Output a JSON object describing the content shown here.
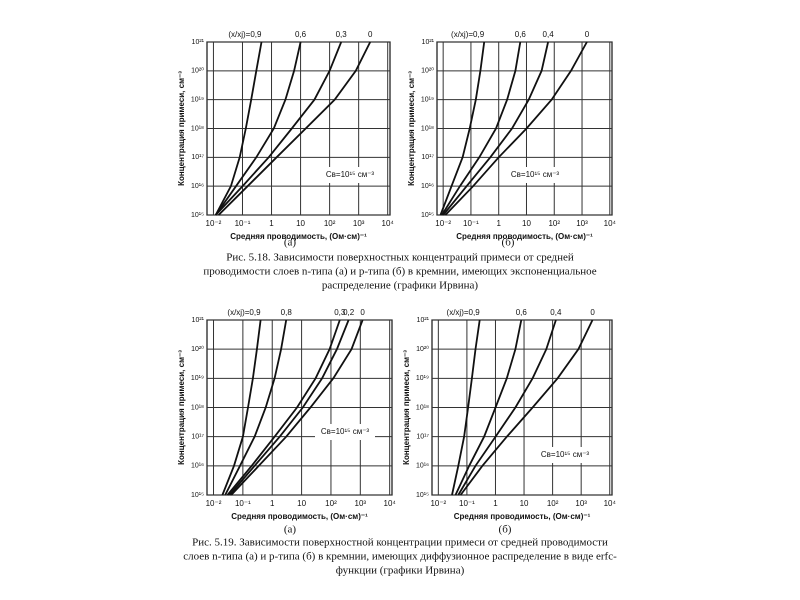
{
  "chart_data": [
    {
      "type": "line",
      "log_scale": true,
      "grid": true,
      "color": "#111111",
      "label": "(а)",
      "x_label": "Средняя проводимость, (Ом·см)⁻¹",
      "y_label": "Концентрация примеси, см⁻³",
      "annotation": "Cв=10¹⁵ см⁻³",
      "xlim": [
        0.006,
        12000
      ],
      "ylim": [
        1000000000000000.0,
        1e+21
      ],
      "xticks": [
        {
          "value": 0.01,
          "label": "10⁻²"
        },
        {
          "value": 0.1,
          "label": "10⁻¹"
        },
        1,
        10,
        {
          "value": 100,
          "label": "10²"
        },
        {
          "value": 1000,
          "label": "10³"
        },
        {
          "value": 10000,
          "label": "10⁴"
        }
      ],
      "yticks": [
        {
          "value": 1000000000000000.0,
          "label": "10¹⁵"
        },
        {
          "value": 1e+16,
          "label": "10¹⁶"
        },
        {
          "value": 1e+17,
          "label": "10¹⁷"
        },
        {
          "value": 1e+18,
          "label": "10¹⁸"
        },
        {
          "value": 1e+19,
          "label": "10¹⁹"
        },
        {
          "value": 1e+20,
          "label": "10²⁰"
        },
        {
          "value": 1e+21,
          "label": "10²¹"
        }
      ],
      "series": [
        {
          "name": "(x/xj)=0,9",
          "x": [
            0.012,
            0.04,
            0.08,
            0.13,
            0.2,
            0.3,
            0.45
          ],
          "values": [
            1000000000000000.0,
            1e+16,
            1e+17,
            1e+18,
            1e+19,
            1e+20,
            1e+21
          ]
        },
        {
          "name": "0,6",
          "x": [
            0.012,
            0.06,
            0.3,
            1.2,
            3,
            6,
            10
          ],
          "values": [
            1000000000000000.0,
            1e+16,
            1e+17,
            1e+18,
            1e+19,
            1e+20,
            1e+21
          ]
        },
        {
          "name": "0,3",
          "x": [
            0.012,
            0.1,
            0.8,
            5,
            30,
            100,
            250
          ],
          "values": [
            1000000000000000.0,
            1e+16,
            1e+17,
            1e+18,
            1e+19,
            1e+20,
            1e+21
          ]
        },
        {
          "name": "0",
          "x": [
            0.015,
            0.15,
            1.5,
            15,
            150,
            800,
            2500
          ],
          "values": [
            1000000000000000.0,
            1e+16,
            1e+17,
            1e+18,
            1e+19,
            1e+20,
            1e+21
          ]
        }
      ]
    },
    {
      "type": "line",
      "log_scale": true,
      "grid": true,
      "color": "#111111",
      "label": "(б)",
      "x_label": "Средняя проводимость, (Ом·см)⁻¹",
      "y_label": "Концентрация примеси, см⁻³",
      "annotation": "Cв=10¹⁵ см⁻³",
      "xlim": [
        0.006,
        12000
      ],
      "ylim": [
        1000000000000000.0,
        1e+21
      ],
      "xticks": [
        {
          "value": 0.01,
          "label": "10⁻²"
        },
        {
          "value": 0.1,
          "label": "10⁻¹"
        },
        1,
        10,
        {
          "value": 100,
          "label": "10²"
        },
        {
          "value": 1000,
          "label": "10³"
        },
        {
          "value": 10000,
          "label": "10⁴"
        }
      ],
      "yticks": [
        {
          "value": 1000000000000000.0,
          "label": "10¹⁵"
        },
        {
          "value": 1e+16,
          "label": "10¹⁶"
        },
        {
          "value": 1e+17,
          "label": "10¹⁷"
        },
        {
          "value": 1e+18,
          "label": "10¹⁸"
        },
        {
          "value": 1e+19,
          "label": "10¹⁹"
        },
        {
          "value": 1e+20,
          "label": "10²⁰"
        },
        {
          "value": 1e+21,
          "label": "10²¹"
        }
      ],
      "series": [
        {
          "name": "(x/xj)=0,9",
          "x": [
            0.008,
            0.02,
            0.05,
            0.09,
            0.15,
            0.22,
            0.3
          ],
          "values": [
            1000000000000000.0,
            1e+16,
            1e+17,
            1e+18,
            1e+19,
            1e+20,
            1e+21
          ]
        },
        {
          "name": "0,6",
          "x": [
            0.009,
            0.04,
            0.2,
            0.8,
            2,
            4,
            6
          ],
          "values": [
            1000000000000000.0,
            1e+16,
            1e+17,
            1e+18,
            1e+19,
            1e+20,
            1e+21
          ]
        },
        {
          "name": "0,4",
          "x": [
            0.01,
            0.07,
            0.5,
            3,
            12,
            35,
            60
          ],
          "values": [
            1000000000000000.0,
            1e+16,
            1e+17,
            1e+18,
            1e+19,
            1e+20,
            1e+21
          ]
        },
        {
          "name": "0",
          "x": [
            0.012,
            0.12,
            1,
            10,
            80,
            400,
            1500
          ],
          "values": [
            1000000000000000.0,
            1e+16,
            1e+17,
            1e+18,
            1e+19,
            1e+20,
            1e+21
          ]
        }
      ]
    },
    {
      "type": "line",
      "log_scale": true,
      "grid": true,
      "color": "#111111",
      "label": "(а)",
      "x_label": "Средняя проводимость, (Ом·см)⁻¹",
      "y_label": "Концентрация примеси, см⁻³",
      "annotation": "Cв=10¹⁵ см⁻³",
      "xlim": [
        0.006,
        12000
      ],
      "ylim": [
        1000000000000000.0,
        1e+21
      ],
      "xticks": [
        {
          "value": 0.01,
          "label": "10⁻²"
        },
        {
          "value": 0.1,
          "label": "10⁻¹"
        },
        1,
        10,
        {
          "value": 100,
          "label": "10²"
        },
        {
          "value": 1000,
          "label": "10³"
        },
        {
          "value": 10000,
          "label": "10⁴"
        }
      ],
      "yticks": [
        {
          "value": 1000000000000000.0,
          "label": "10¹⁵"
        },
        {
          "value": 1e+16,
          "label": "10¹⁶"
        },
        {
          "value": 1e+17,
          "label": "10¹⁷"
        },
        {
          "value": 1e+18,
          "label": "10¹⁸"
        },
        {
          "value": 1e+19,
          "label": "10¹⁹"
        },
        {
          "value": 1e+20,
          "label": "10²⁰"
        },
        {
          "value": 1e+21,
          "label": "10²¹"
        }
      ],
      "series": [
        {
          "name": "(x/xj)=0,9",
          "x": [
            0.02,
            0.05,
            0.1,
            0.15,
            0.22,
            0.3,
            0.4
          ],
          "values": [
            1000000000000000.0,
            1e+16,
            1e+17,
            1e+18,
            1e+19,
            1e+20,
            1e+21
          ]
        },
        {
          "name": "0,8",
          "x": [
            0.025,
            0.08,
            0.25,
            0.6,
            1.2,
            2,
            3
          ],
          "values": [
            1000000000000000.0,
            1e+16,
            1e+17,
            1e+18,
            1e+19,
            1e+20,
            1e+21
          ]
        },
        {
          "name": "0,3",
          "x": [
            0.03,
            0.2,
            1.2,
            7,
            30,
            90,
            200
          ],
          "values": [
            1000000000000000.0,
            1e+16,
            1e+17,
            1e+18,
            1e+19,
            1e+20,
            1e+21
          ]
        },
        {
          "name": "0,2",
          "x": [
            0.035,
            0.25,
            1.8,
            11,
            50,
            160,
            400
          ],
          "values": [
            1000000000000000.0,
            1e+16,
            1e+17,
            1e+18,
            1e+19,
            1e+20,
            1e+21
          ]
        },
        {
          "name": "0",
          "x": [
            0.04,
            0.35,
            3,
            20,
            120,
            500,
            1200
          ],
          "values": [
            1000000000000000.0,
            1e+16,
            1e+17,
            1e+18,
            1e+19,
            1e+20,
            1e+21
          ]
        }
      ]
    },
    {
      "type": "line",
      "log_scale": true,
      "grid": true,
      "color": "#111111",
      "label": "(б)",
      "x_label": "Средняя проводимость, (Ом·см)⁻¹",
      "y_label": "Концентрация примеси, см⁻³",
      "annotation": "Cв=10¹⁵ см⁻³",
      "xlim": [
        0.006,
        12000
      ],
      "ylim": [
        1000000000000000.0,
        1e+21
      ],
      "xticks": [
        {
          "value": 0.01,
          "label": "10⁻²"
        },
        {
          "value": 0.1,
          "label": "10⁻¹"
        },
        1,
        10,
        {
          "value": 100,
          "label": "10²"
        },
        {
          "value": 1000,
          "label": "10³"
        },
        {
          "value": 10000,
          "label": "10⁴"
        }
      ],
      "yticks": [
        {
          "value": 1000000000000000.0,
          "label": "10¹⁵"
        },
        {
          "value": 1e+16,
          "label": "10¹⁶"
        },
        {
          "value": 1e+17,
          "label": "10¹⁷"
        },
        {
          "value": 1e+18,
          "label": "10¹⁸"
        },
        {
          "value": 1e+19,
          "label": "10¹⁹"
        },
        {
          "value": 1e+20,
          "label": "10²⁰"
        },
        {
          "value": 1e+21,
          "label": "10²¹"
        }
      ],
      "series": [
        {
          "name": "(x/xj)=0,9",
          "x": [
            0.03,
            0.05,
            0.08,
            0.11,
            0.15,
            0.2,
            0.28
          ],
          "values": [
            1000000000000000.0,
            1e+16,
            1e+17,
            1e+18,
            1e+19,
            1e+20,
            1e+21
          ]
        },
        {
          "name": "0,6",
          "x": [
            0.04,
            0.12,
            0.4,
            1,
            2.5,
            5,
            8
          ],
          "values": [
            1000000000000000.0,
            1e+16,
            1e+17,
            1e+18,
            1e+19,
            1e+20,
            1e+21
          ]
        },
        {
          "name": "0,4",
          "x": [
            0.05,
            0.2,
            1,
            5,
            20,
            60,
            130
          ],
          "values": [
            1000000000000000.0,
            1e+16,
            1e+17,
            1e+18,
            1e+19,
            1e+20,
            1e+21
          ]
        },
        {
          "name": "0",
          "x": [
            0.06,
            0.35,
            2.5,
            20,
            150,
            800,
            2500
          ],
          "values": [
            1000000000000000.0,
            1e+16,
            1e+17,
            1e+18,
            1e+19,
            1e+20,
            1e+21
          ]
        }
      ]
    }
  ],
  "captions": [
    [
      "Рис. 5.18. Зависимости поверхностных концентраций примеси от средней",
      "проводимости слоев n-типа (а) и p-типа (б) в кремнии, имеющих экспоненциальное",
      "распределение (графики Ирвина)"
    ],
    [
      "Рис. 5.19. Зависимости поверхностной концентрации примеси от средней проводимости",
      "слоев n-типа (а) и p-типа (б) в кремнии, имеющих диффузионное распределение в виде erfc-",
      "функции (графики Ирвина)"
    ]
  ]
}
